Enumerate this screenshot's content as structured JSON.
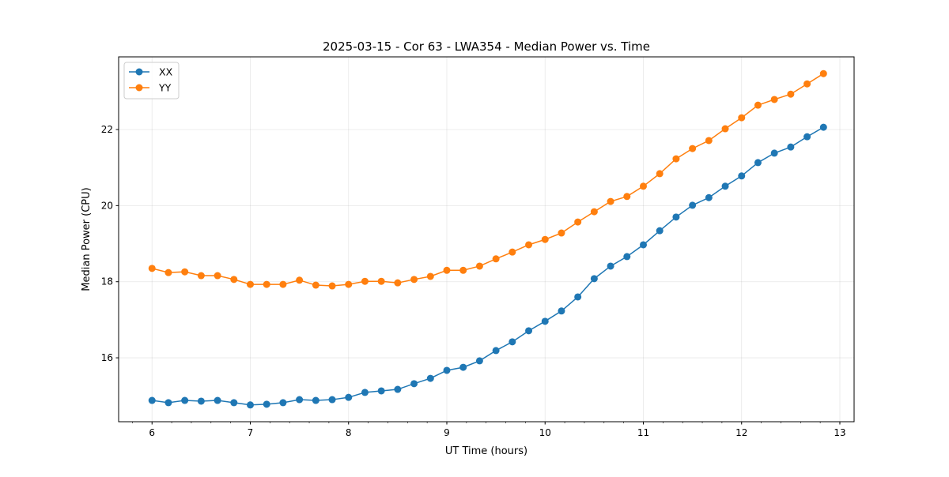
{
  "chart_data": {
    "type": "line",
    "title": "2025-03-15 - Cor 63 - LWA354 - Median Power vs. Time",
    "xlabel": "UT Time (hours)",
    "ylabel": "Median Power (CPU)",
    "xlim": [
      5.66,
      13.145
    ],
    "ylim": [
      14.32,
      23.91
    ],
    "xticks": [
      6,
      7,
      8,
      9,
      10,
      11,
      12,
      13
    ],
    "yticks": [
      16,
      18,
      20,
      22
    ],
    "grid": true,
    "legend_position": "top-left",
    "x_start": 6.0,
    "x_step": 0.16667,
    "series": [
      {
        "name": "XX",
        "color": "#1f77b4",
        "values": [
          14.88,
          14.82,
          14.88,
          14.86,
          14.88,
          14.82,
          14.76,
          14.78,
          14.82,
          14.9,
          14.88,
          14.9,
          14.96,
          15.09,
          15.13,
          15.17,
          15.32,
          15.46,
          15.67,
          15.75,
          15.92,
          16.19,
          16.42,
          16.71,
          16.96,
          17.23,
          17.6,
          18.08,
          18.41,
          18.66,
          18.97,
          19.34,
          19.7,
          20.01,
          20.21,
          20.51,
          20.78,
          21.13,
          21.38,
          21.54,
          21.81,
          22.06
        ]
      },
      {
        "name": "YY",
        "color": "#ff7f0e",
        "values": [
          18.35,
          18.24,
          18.26,
          18.16,
          18.16,
          18.06,
          17.93,
          17.93,
          17.93,
          18.04,
          17.91,
          17.89,
          17.93,
          18.01,
          18.01,
          17.97,
          18.06,
          18.14,
          18.3,
          18.3,
          18.41,
          18.6,
          18.78,
          18.97,
          19.11,
          19.28,
          19.57,
          19.84,
          20.11,
          20.24,
          20.51,
          20.84,
          21.23,
          21.5,
          21.71,
          22.02,
          22.31,
          22.64,
          22.79,
          22.93,
          23.2,
          23.47
        ]
      }
    ]
  }
}
